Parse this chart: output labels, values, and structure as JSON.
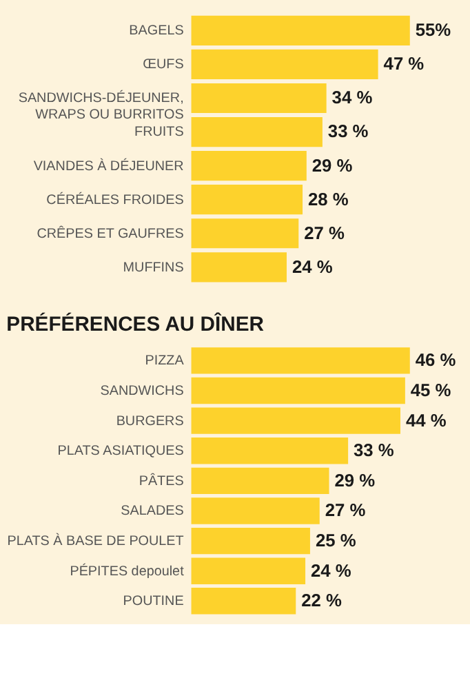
{
  "chart_data": [
    {
      "type": "bar",
      "orientation": "horizontal",
      "categories": [
        "BAGELS",
        "ŒUFS",
        "SANDWICHS-DÉJEUNER, WRAPS OU BURRITOS",
        "FRUITS",
        "VIANDES À DÉJEUNER",
        "CÉRÉALES FROIDES",
        "CRÊPES ET GAUFRES",
        "MUFFINS"
      ],
      "values": [
        55,
        47,
        34,
        33,
        29,
        28,
        27,
        24
      ],
      "value_labels": [
        "55%",
        "47 %",
        "34 %",
        "33 %",
        "29 %",
        "28 %",
        "27 %",
        "24 %"
      ],
      "color": "#fdd22c"
    },
    {
      "type": "bar",
      "orientation": "horizontal",
      "title": "PRÉFÉRENCES AU DÎNER",
      "categories": [
        "PIZZA",
        "SANDWICHS",
        "BURGERS",
        "PLATS ASIATIQUES",
        "PÂTES",
        "SALADES",
        "PLATS À BASE DE POULET",
        "PÉPITES depoulet",
        "POUTINE"
      ],
      "values": [
        46,
        45,
        44,
        33,
        29,
        27,
        25,
        24,
        22
      ],
      "value_labels": [
        "46 %",
        "45 %",
        "44 %",
        "33 %",
        "29 %",
        "27 %",
        "25 %",
        "24 %",
        "22 %"
      ],
      "color": "#fdd22c"
    }
  ]
}
